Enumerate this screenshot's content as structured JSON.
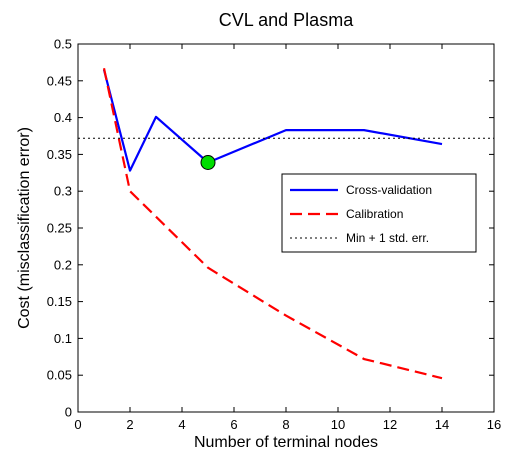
{
  "chart_data": {
    "type": "line",
    "title": "CVL and Plasma",
    "xlabel": "Number of terminal nodes",
    "ylabel": "Cost (misclassification error)",
    "xlim": [
      0,
      16
    ],
    "ylim": [
      0,
      0.5
    ],
    "xticks": [
      0,
      2,
      4,
      6,
      8,
      10,
      12,
      14,
      16
    ],
    "yticks": [
      0,
      0.05,
      0.1,
      0.15,
      0.2,
      0.25,
      0.3,
      0.35,
      0.4,
      0.45,
      0.5
    ],
    "xtick_labels": [
      "0",
      "2",
      "4",
      "6",
      "8",
      "10",
      "12",
      "14",
      "16"
    ],
    "ytick_labels": [
      "0",
      "0.05",
      "0.1",
      "0.15",
      "0.2",
      "0.25",
      "0.3",
      "0.35",
      "0.4",
      "0.45",
      "0.5"
    ],
    "grid": false,
    "legend_position": "right",
    "series": [
      {
        "name": "Cross-validation",
        "color": "#0000ff",
        "style": "solid",
        "x": [
          1,
          2,
          3,
          5,
          8,
          11,
          14
        ],
        "y": [
          0.465,
          0.328,
          0.401,
          0.339,
          0.383,
          0.383,
          0.364
        ]
      },
      {
        "name": "Calibration",
        "color": "#ff0000",
        "style": "dashed",
        "x": [
          1,
          2,
          5,
          8,
          11,
          14
        ],
        "y": [
          0.467,
          0.3,
          0.196,
          0.131,
          0.072,
          0.046
        ]
      },
      {
        "name": "Min + 1 std. err.",
        "color": "#000000",
        "style": "dotted",
        "x": [
          0,
          16
        ],
        "y": [
          0.372,
          0.372
        ]
      }
    ],
    "marker": {
      "x": 5,
      "y": 0.339,
      "color": "#00dd00"
    }
  }
}
